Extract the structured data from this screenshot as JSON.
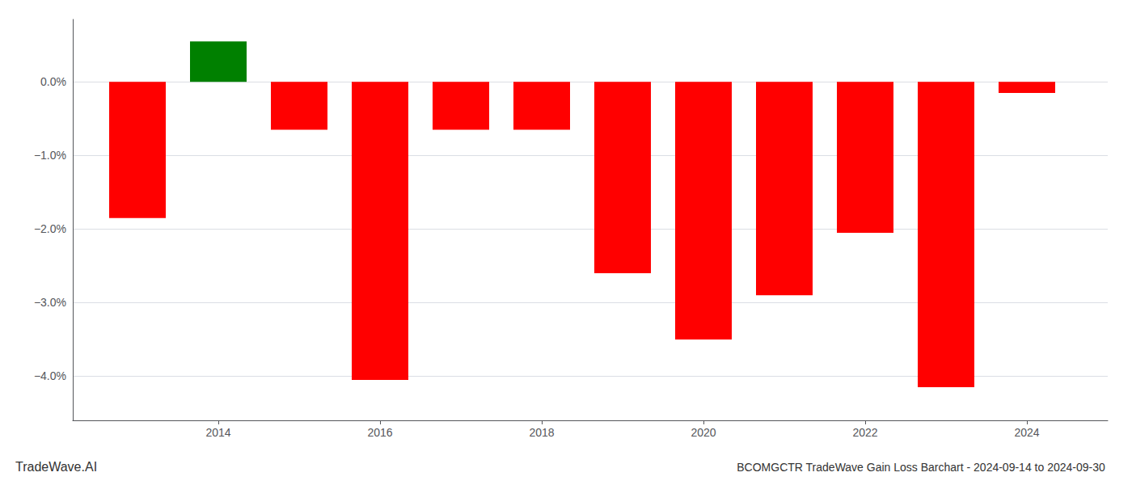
{
  "chart_data": {
    "type": "bar",
    "title": "BCOMGCTR TradeWave Gain Loss Barchart - 2024-09-14 to 2024-09-30",
    "annotations": [
      "TradeWave.AI"
    ],
    "x": [
      2013,
      2014,
      2015,
      2016,
      2017,
      2018,
      2019,
      2020,
      2021,
      2022,
      2023,
      2024
    ],
    "values": [
      -1.85,
      0.55,
      -0.65,
      -4.05,
      -0.65,
      -0.65,
      -2.6,
      -3.5,
      -2.9,
      -2.05,
      -4.15,
      -0.15
    ],
    "colors": [
      "#ff0000",
      "#008000",
      "#ff0000",
      "#ff0000",
      "#ff0000",
      "#ff0000",
      "#ff0000",
      "#ff0000",
      "#ff0000",
      "#ff0000",
      "#ff0000",
      "#ff0000"
    ],
    "xlim": [
      2012.2,
      2025.0
    ],
    "xticks": [
      2014,
      2016,
      2018,
      2020,
      2022,
      2024
    ],
    "ylim": [
      -4.6,
      0.85
    ],
    "yticks": [
      {
        "value": 0.0,
        "label": "0.0%"
      },
      {
        "value": -1.0,
        "label": "−1.0%"
      },
      {
        "value": -2.0,
        "label": "−2.0%"
      },
      {
        "value": -3.0,
        "label": "−3.0%"
      },
      {
        "value": -4.0,
        "label": "−4.0%"
      }
    ],
    "grid": true
  }
}
